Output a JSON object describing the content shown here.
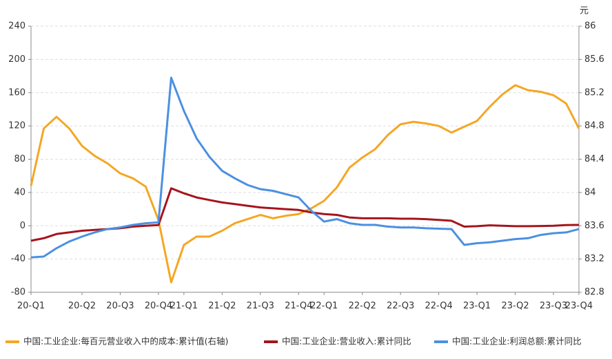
{
  "chart_data": {
    "type": "line",
    "y2_label": "元",
    "categories": [
      "20-Q1",
      null,
      null,
      null,
      "20-Q2",
      null,
      null,
      "20-Q3",
      null,
      null,
      "20-Q4",
      null,
      "21-Q1",
      null,
      null,
      "21-Q2",
      null,
      null,
      "21-Q3",
      null,
      null,
      "21-Q4",
      null,
      "22-Q1",
      null,
      null,
      "22-Q2",
      null,
      null,
      "22-Q3",
      null,
      null,
      "22-Q4",
      null,
      null,
      "23-Q1",
      null,
      null,
      "23-Q2",
      null,
      null,
      "23-Q3",
      null,
      "23-Q4"
    ],
    "series": [
      {
        "name": "中国:工业企业:每百元营业收入中的成本:累计值(右轴)",
        "color": "#f5a623",
        "axis": "y2",
        "values": [
          84.08,
          84.77,
          84.91,
          84.77,
          84.56,
          84.44,
          84.35,
          84.23,
          84.17,
          84.07,
          83.67,
          82.92,
          83.37,
          83.47,
          83.47,
          83.54,
          83.63,
          83.68,
          83.73,
          83.69,
          83.72,
          83.74,
          83.81,
          83.9,
          84.06,
          84.3,
          84.42,
          84.52,
          84.69,
          84.82,
          84.85,
          84.83,
          84.8,
          84.72,
          84.79,
          84.86,
          85.03,
          85.18,
          85.29,
          85.23,
          85.21,
          85.17,
          85.07,
          84.77
        ]
      },
      {
        "name": "中国:工业企业:营业收入:累计同比",
        "color": "#a5141c",
        "values": [
          -18,
          -15,
          -10,
          -8,
          -6,
          -5,
          -4,
          -3,
          -1,
          0,
          0.8,
          45,
          39,
          34,
          31,
          28,
          26,
          24,
          22,
          21,
          20,
          19,
          16,
          14,
          13,
          10,
          9,
          9,
          9,
          8.5,
          8.5,
          8,
          7,
          6,
          -1,
          -0.5,
          0.5,
          0,
          -0.5,
          -0.5,
          -0.3,
          0,
          0.8,
          1
        ]
      },
      {
        "name": "中国:工业企业:利润总额:累计同比",
        "color": "#4a90e2",
        "values": [
          -38,
          -37,
          -27,
          -19,
          -13,
          -8,
          -4,
          -2,
          1,
          3,
          4,
          178,
          138,
          105,
          83,
          66,
          57,
          49,
          44,
          42,
          38,
          34,
          18,
          5,
          8,
          3,
          1,
          1,
          -1,
          -2,
          -2,
          -3,
          -3.5,
          -4,
          -23,
          -21,
          -20,
          -18,
          -16,
          -15,
          -11,
          -9,
          -8,
          -4
        ]
      }
    ],
    "ylim": [
      -80,
      240
    ],
    "yticks": [
      -80,
      -40,
      0,
      40,
      80,
      120,
      160,
      200,
      240
    ],
    "y2lim": [
      82.8,
      86
    ],
    "y2ticks": [
      82.8,
      83.2,
      83.6,
      84,
      84.4,
      84.8,
      85.2,
      85.6,
      86
    ],
    "grid": true
  }
}
